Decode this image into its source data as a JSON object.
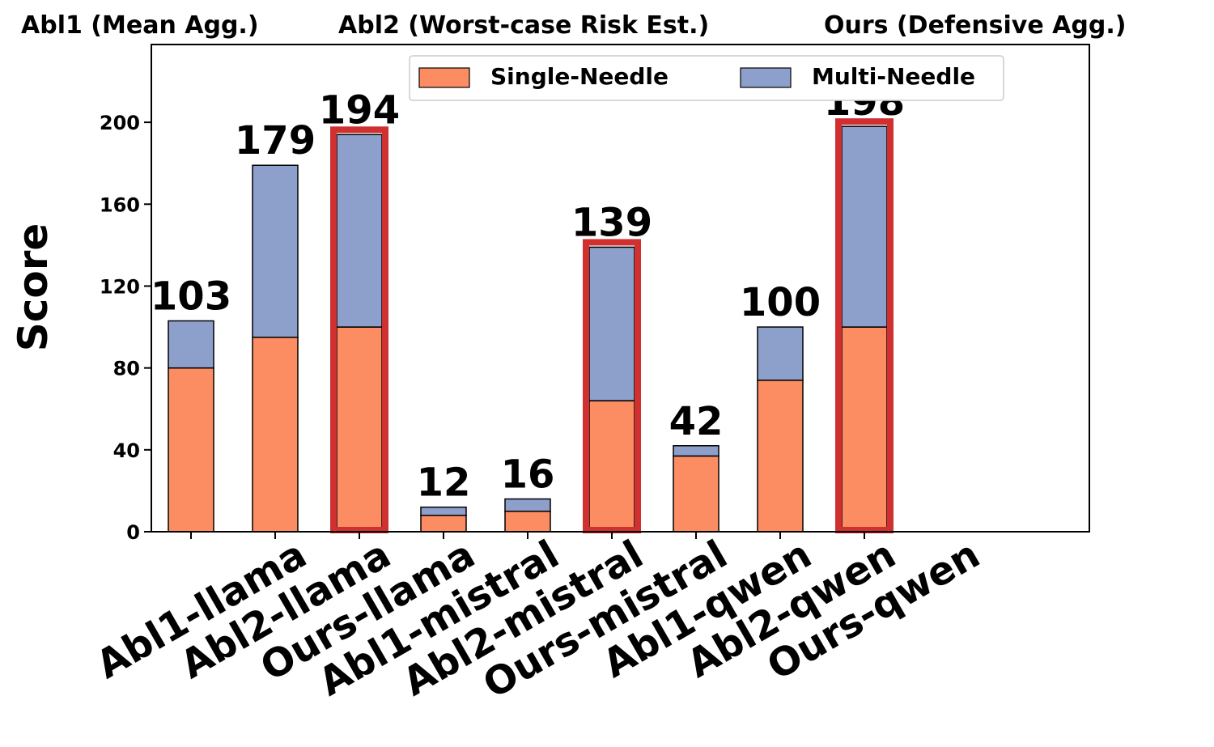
{
  "chart_data": {
    "type": "bar",
    "stacked": true,
    "group_titles": [
      "Abl1 (Mean Agg.)",
      "Abl2 (Worst-case Risk Est.)",
      "Ours (Defensive Agg.)"
    ],
    "categories": [
      "Abl1-llama",
      "Abl2-llama",
      "Ours-llama",
      "Abl1-mistral",
      "Abl2-mistral",
      "Ours-mistral",
      "Abl1-qwen",
      "Abl2-qwen",
      "Ours-qwen"
    ],
    "series": [
      {
        "name": "Single-Needle",
        "color": "#fc8d62",
        "values": [
          80,
          95,
          100,
          8,
          10,
          64,
          37,
          74,
          100
        ]
      },
      {
        "name": "Multi-Needle",
        "color": "#8da0cb",
        "values": [
          23,
          84,
          94,
          4,
          6,
          75,
          5,
          26,
          98
        ]
      }
    ],
    "totals": [
      "103",
      "179",
      "194",
      "12",
      "16",
      "139",
      "42",
      "100",
      "198"
    ],
    "highlighted": [
      2,
      5,
      8
    ],
    "highlight_color": "#d03030",
    "ylabel": "Score",
    "yticks": [
      "0",
      "40",
      "80",
      "120",
      "160",
      "200"
    ],
    "ylim": [
      0,
      238
    ],
    "legend_position": "top-right"
  }
}
